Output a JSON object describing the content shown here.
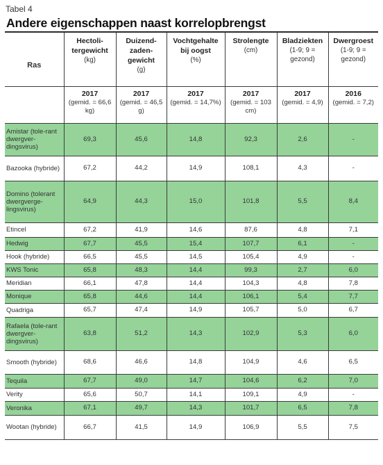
{
  "caption": "Tabel 4",
  "title": "Andere eigenschappen naast korrelopbrengst",
  "columns": [
    {
      "name": "Ras"
    },
    {
      "name": "Hectoli-tergewicht",
      "unit": "(kg)",
      "year": "2017",
      "gemid": "(gemid. = 66,6 kg)"
    },
    {
      "name": "Duizend-zaden-gewicht",
      "unit": "(g)",
      "year": "2017",
      "gemid": "(gemid. = 46,5 g)"
    },
    {
      "name": "Vochtgehalte bij oogst",
      "unit": "(%)",
      "year": "2017",
      "gemid": "(gemid. = 14,7%)"
    },
    {
      "name": "Strolengte",
      "unit": "(cm)",
      "year": "2017",
      "gemid": "(gemid. = 103 cm)"
    },
    {
      "name": "Bladziekten",
      "unit": "(1-9; 9 = gezond)",
      "year": "2017",
      "gemid": "(gemid. = 4,9)"
    },
    {
      "name": "Dwergroest",
      "unit": "(1-9; 9 = gezond)",
      "year": "2016",
      "gemid": "(gemid. = 7,2)"
    }
  ],
  "colors": {
    "highlight": "#95d399"
  },
  "rows": [
    {
      "ras": "Amistar (tole-rant dwergver-dingsvirus)",
      "v": [
        "69,3",
        "45,6",
        "14,8",
        "92,3",
        "2,6",
        "-"
      ],
      "green": true
    },
    {
      "ras": "Bazooka (hybride)",
      "v": [
        "67,2",
        "44,2",
        "14,9",
        "108,1",
        "4,3",
        "-"
      ],
      "green": false
    },
    {
      "ras": "Domino (tolerant dwergverge-lingsvirus)",
      "v": [
        "64,9",
        "44,3",
        "15,0",
        "101,8",
        "5,5",
        "8,4"
      ],
      "green": true
    },
    {
      "ras": "Etincel",
      "v": [
        "67,2",
        "41,9",
        "14,6",
        "87,6",
        "4,8",
        "7,1"
      ],
      "green": false
    },
    {
      "ras": "Hedwig",
      "v": [
        "67,7",
        "45,5",
        "15,4",
        "107,7",
        "6,1",
        "-"
      ],
      "green": true
    },
    {
      "ras": "Hook (hybride)",
      "v": [
        "66,5",
        "45,5",
        "14,5",
        "105,4",
        "4,9",
        "-"
      ],
      "green": false
    },
    {
      "ras": "KWS Tonic",
      "v": [
        "65,8",
        "48,3",
        "14,4",
        "99,3",
        "2,7",
        "6,0"
      ],
      "green": true
    },
    {
      "ras": "Meridian",
      "v": [
        "66,1",
        "47,8",
        "14,4",
        "104,3",
        "4,8",
        "7,8"
      ],
      "green": false
    },
    {
      "ras": "Monique",
      "v": [
        "65,8",
        "44,6",
        "14,4",
        "106,1",
        "5,4",
        "7,7"
      ],
      "green": true
    },
    {
      "ras": "Quadriga",
      "v": [
        "65,7",
        "47,4",
        "14,9",
        "105,7",
        "5,0",
        "6,7"
      ],
      "green": false
    },
    {
      "ras": "Rafaela (tole-rant dwergver-dingsvirus)",
      "v": [
        "63,8",
        "51,2",
        "14,3",
        "102,9",
        "5,3",
        "6,0"
      ],
      "green": true
    },
    {
      "ras": "Smooth (hybride)",
      "v": [
        "68,6",
        "46,6",
        "14,8",
        "104,9",
        "4,6",
        "6,5"
      ],
      "green": false
    },
    {
      "ras": "Tequila",
      "v": [
        "67,7",
        "49,0",
        "14,7",
        "104,6",
        "6,2",
        "7,0"
      ],
      "green": true
    },
    {
      "ras": "Verity",
      "v": [
        "65,6",
        "50,7",
        "14,1",
        "109,1",
        "4,9",
        "-"
      ],
      "green": false
    },
    {
      "ras": "Veronika",
      "v": [
        "67,1",
        "49,7",
        "14,3",
        "101,7",
        "6,5",
        "7,8"
      ],
      "green": true
    },
    {
      "ras": "Wootan (hybride)",
      "v": [
        "66,7",
        "41,5",
        "14,9",
        "106,9",
        "5,5",
        "7,5"
      ],
      "green": false
    }
  ]
}
